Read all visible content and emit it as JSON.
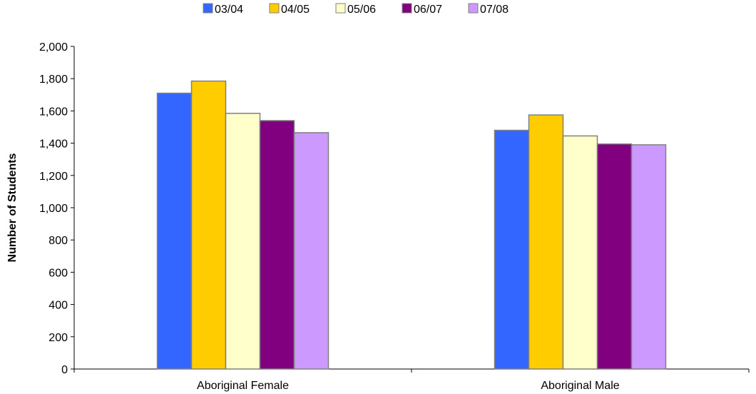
{
  "chart_data": {
    "type": "bar",
    "title": "",
    "xlabel": "",
    "ylabel": "Number of Students",
    "ylim": [
      0,
      2000
    ],
    "yticks": [
      0,
      200,
      400,
      600,
      800,
      1000,
      1200,
      1400,
      1600,
      1800,
      2000
    ],
    "ytick_labels": [
      "0",
      "200",
      "400",
      "600",
      "800",
      "1,000",
      "1,200",
      "1,400",
      "1,600",
      "1,800",
      "2,000"
    ],
    "grid": false,
    "legend_position": "top",
    "categories": [
      "Aboriginal Female",
      "Aboriginal Male"
    ],
    "series": [
      {
        "name": "03/04",
        "color": "#3366FF",
        "values": [
          1710,
          1480
        ]
      },
      {
        "name": "04/05",
        "color": "#FFCC00",
        "values": [
          1785,
          1575
        ]
      },
      {
        "name": "05/06",
        "color": "#FFFFCC",
        "values": [
          1585,
          1445
        ]
      },
      {
        "name": "06/07",
        "color": "#800080",
        "values": [
          1540,
          1395
        ]
      },
      {
        "name": "07/08",
        "color": "#CC99FF",
        "values": [
          1465,
          1390
        ]
      }
    ]
  }
}
